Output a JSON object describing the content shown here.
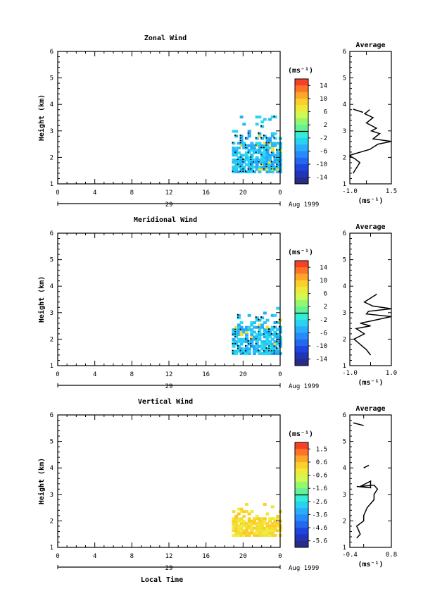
{
  "chart_data": [
    {
      "type": "heatmap",
      "title": "Zonal Wind",
      "ylabel": "Height (km)",
      "ylim": [
        1,
        6
      ],
      "yticks": [
        "1",
        "2",
        "3",
        "4",
        "5",
        "6"
      ],
      "xlim": [
        0,
        24
      ],
      "xticks": [
        "0",
        "4",
        "8",
        "12",
        "16",
        "20",
        "0"
      ],
      "date_day": "29",
      "date_label": "Aug 1999",
      "colorbar": {
        "unit": "(ms⁻¹)",
        "labels": [
          "14",
          "10",
          "6",
          "2",
          "-2",
          "-6",
          "-10",
          "-14"
        ],
        "range": [
          -16,
          16
        ]
      },
      "data_window": {
        "x": [
          18.8,
          24
        ],
        "y": [
          1.4,
          3.5
        ]
      },
      "dominant_value": -4,
      "average_profile": {
        "title": "Average",
        "xlabel": "(ms⁻¹)",
        "xlim": [
          -1.0,
          1.5
        ],
        "xticks": [
          "-1.0",
          "1.5"
        ],
        "ylim": [
          1,
          6
        ],
        "yticks": [
          "1",
          "2",
          "3",
          "4",
          "5",
          "6"
        ],
        "x": [
          -0.8,
          -0.6,
          -0.4,
          -0.7,
          -1.0,
          -0.9,
          0.2,
          0.7,
          1.5,
          0.4,
          0.8,
          0.3,
          0.6,
          0.0,
          0.4,
          -0.1,
          0.2
        ],
        "y": [
          1.4,
          1.6,
          1.8,
          1.95,
          2.05,
          2.1,
          2.3,
          2.5,
          2.6,
          2.7,
          2.9,
          3.0,
          3.1,
          3.3,
          3.5,
          3.65,
          3.8
        ]
      }
    },
    {
      "type": "heatmap",
      "title": "Meridional Wind",
      "ylabel": "Height (km)",
      "ylim": [
        1,
        6
      ],
      "yticks": [
        "1",
        "2",
        "3",
        "4",
        "5",
        "6"
      ],
      "xlim": [
        0,
        24
      ],
      "xticks": [
        "0",
        "4",
        "8",
        "12",
        "16",
        "20",
        "0"
      ],
      "date_day": "29",
      "date_label": "Aug 1999",
      "colorbar": {
        "unit": "(ms⁻¹)",
        "labels": [
          "14",
          "10",
          "6",
          "2",
          "-2",
          "-6",
          "-10",
          "-14"
        ],
        "range": [
          -16,
          16
        ]
      },
      "data_window": {
        "x": [
          18.8,
          24
        ],
        "y": [
          1.4,
          3.3
        ]
      },
      "dominant_value": -4,
      "average_profile": {
        "title": "Average",
        "xlabel": "(ms⁻¹)",
        "xlim": [
          -1.0,
          1.0
        ],
        "xticks": [
          "-1.0",
          "1.0"
        ],
        "ylim": [
          1,
          6
        ],
        "yticks": [
          "1",
          "2",
          "3",
          "4",
          "5",
          "6"
        ],
        "x": [
          0.0,
          -0.2,
          -0.5,
          -0.8,
          -0.3,
          -0.7,
          0.0,
          -0.5,
          0.1,
          1.0,
          -0.2,
          -0.1,
          1.0,
          0.1,
          -0.3,
          0.0,
          0.3
        ],
        "y": [
          1.4,
          1.6,
          1.8,
          2.0,
          2.2,
          2.4,
          2.5,
          2.6,
          2.7,
          2.85,
          2.95,
          3.05,
          3.15,
          3.25,
          3.4,
          3.55,
          3.7
        ]
      }
    },
    {
      "type": "heatmap",
      "title": "Vertical Wind",
      "ylabel": "Height (km)",
      "xlabel": "Local Time",
      "ylim": [
        1,
        6
      ],
      "yticks": [
        "1",
        "2",
        "3",
        "4",
        "5",
        "6"
      ],
      "xlim": [
        0,
        24
      ],
      "xticks": [
        "0",
        "4",
        "8",
        "12",
        "16",
        "20",
        "0"
      ],
      "date_day": "29",
      "date_label": "Aug 1999",
      "colorbar": {
        "unit": "(ms⁻¹)",
        "labels": [
          "1.5",
          "0.6",
          "-0.6",
          "-1.6",
          "-2.6",
          "-3.6",
          "-4.6",
          "-5.6"
        ],
        "range": [
          -6.0,
          2.0
        ]
      },
      "data_window": {
        "x": [
          18.8,
          24
        ],
        "y": [
          1.4,
          2.6
        ]
      },
      "dominant_value": 0.0,
      "average_profile": {
        "title": "Average",
        "xlabel": "(ms⁻¹)",
        "xlim": [
          -0.4,
          0.8
        ],
        "xticks": [
          "-0.4",
          "0.8"
        ],
        "ylim": [
          1,
          6
        ],
        "yticks": [
          "1",
          "2",
          "3",
          "4",
          "5",
          "6"
        ],
        "x": [
          -0.2,
          -0.1,
          -0.2,
          0.0,
          0.0,
          0.1,
          0.3,
          0.3,
          0.4,
          0.3,
          -0.1,
          0.2,
          0.2,
          -0.2
        ],
        "y": [
          1.35,
          1.5,
          1.8,
          2.0,
          2.2,
          2.5,
          2.8,
          3.0,
          3.2,
          3.35,
          3.3,
          3.5,
          3.25,
          3.3
        ]
      }
    }
  ]
}
